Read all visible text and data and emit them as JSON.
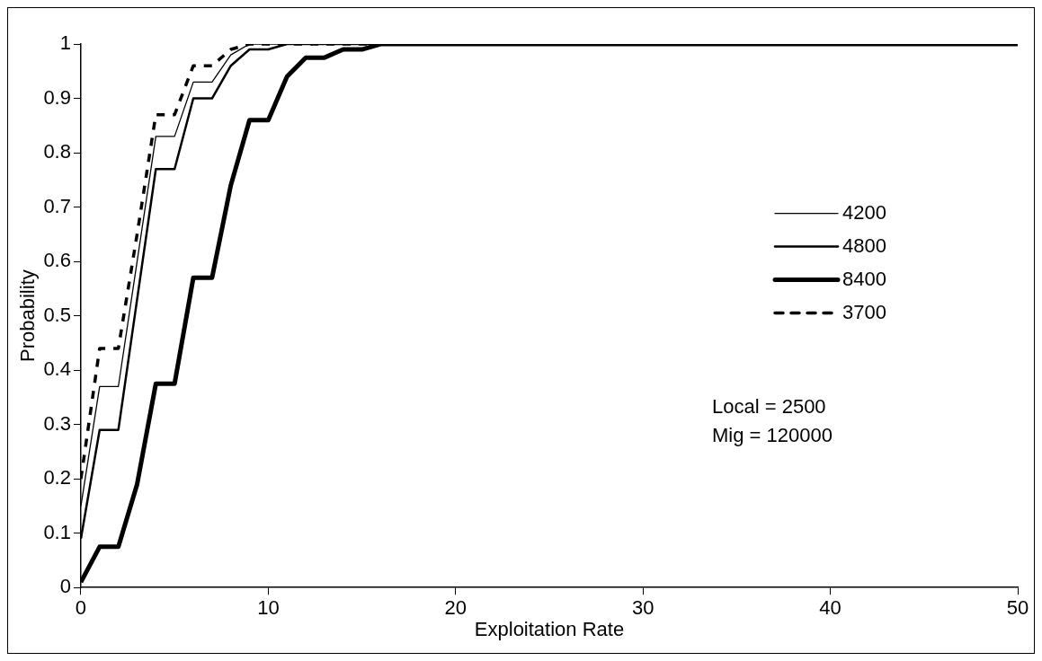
{
  "chart_data": {
    "type": "line",
    "xlabel": "Exploitation Rate",
    "ylabel": "Probability",
    "x": [
      0,
      1,
      2,
      3,
      4,
      5,
      6,
      7,
      8,
      9,
      10,
      11,
      12,
      13,
      14,
      15,
      16,
      50
    ],
    "series": [
      {
        "name": "4200",
        "color": "#000000",
        "line_style": "solid",
        "values": [
          0.15,
          0.37,
          0.37,
          0.6,
          0.83,
          0.83,
          0.93,
          0.93,
          0.98,
          1,
          1,
          1,
          1,
          1,
          1,
          1,
          1,
          1
        ]
      },
      {
        "name": "4800",
        "color": "#000000",
        "line_style": "solid",
        "values": [
          0.09,
          0.29,
          0.29,
          0.53,
          0.77,
          0.77,
          0.9,
          0.9,
          0.96,
          0.99,
          0.99,
          1,
          1,
          1,
          1,
          1,
          1,
          1
        ]
      },
      {
        "name": "8400",
        "color": "#000000",
        "line_style": "solid",
        "values": [
          0.01,
          0.075,
          0.075,
          0.19,
          0.375,
          0.375,
          0.57,
          0.57,
          0.74,
          0.86,
          0.86,
          0.94,
          0.975,
          0.975,
          0.99,
          0.99,
          1,
          1
        ]
      },
      {
        "name": "3700",
        "color": "#000000",
        "line_style": "dashed",
        "values": [
          0.2,
          0.44,
          0.44,
          0.65,
          0.87,
          0.87,
          0.96,
          0.96,
          0.99,
          1,
          1,
          1,
          1,
          1,
          1,
          1,
          1,
          1
        ]
      }
    ],
    "xlim": [
      0,
      50
    ],
    "xticks": [
      0,
      10,
      20,
      30,
      40,
      50
    ],
    "ylim": [
      0,
      1
    ],
    "yticks": [
      0,
      0.1,
      0.2,
      0.3,
      0.4,
      0.5,
      0.6,
      0.7,
      0.8,
      0.9,
      1
    ],
    "grid": false,
    "legend": "right",
    "marker": "none",
    "annotations": [
      "Local = 2500",
      "Mig = 120000"
    ]
  }
}
